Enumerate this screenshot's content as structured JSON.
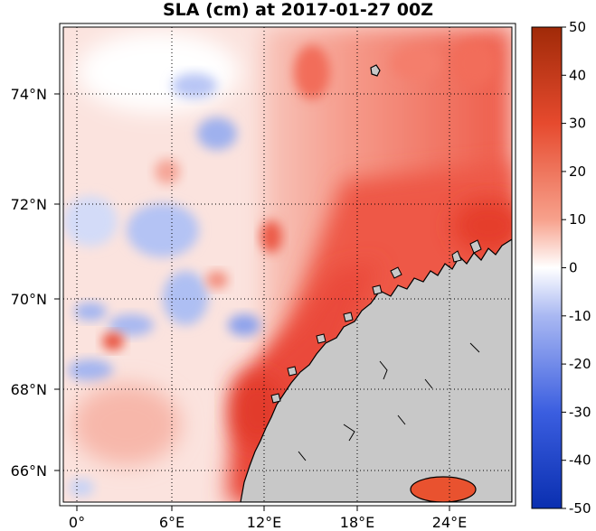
{
  "title": "SLA (cm) at 2017-01-27 00Z",
  "map": {
    "variable": "SLA",
    "units": "cm",
    "lat_labels": [
      "74°N",
      "72°N",
      "70°N",
      "68°N",
      "66°N"
    ],
    "lon_labels": [
      "0°",
      "6°E",
      "12°E",
      "18°E",
      "24°E"
    ],
    "gridlines": "dotted",
    "land_color": "#c8c8c8",
    "coastline_color": "#000000"
  },
  "colorbar": {
    "tick_labels": [
      "50",
      "40",
      "30",
      "20",
      "10",
      "0",
      "-10",
      "-20",
      "-30",
      "-40",
      "-50"
    ],
    "range": [
      -50,
      50
    ],
    "colormap": "blue-white-red",
    "colors": {
      "min": "#0a2fb0",
      "mid": "#ffffff",
      "max": "#a02a08"
    }
  }
}
